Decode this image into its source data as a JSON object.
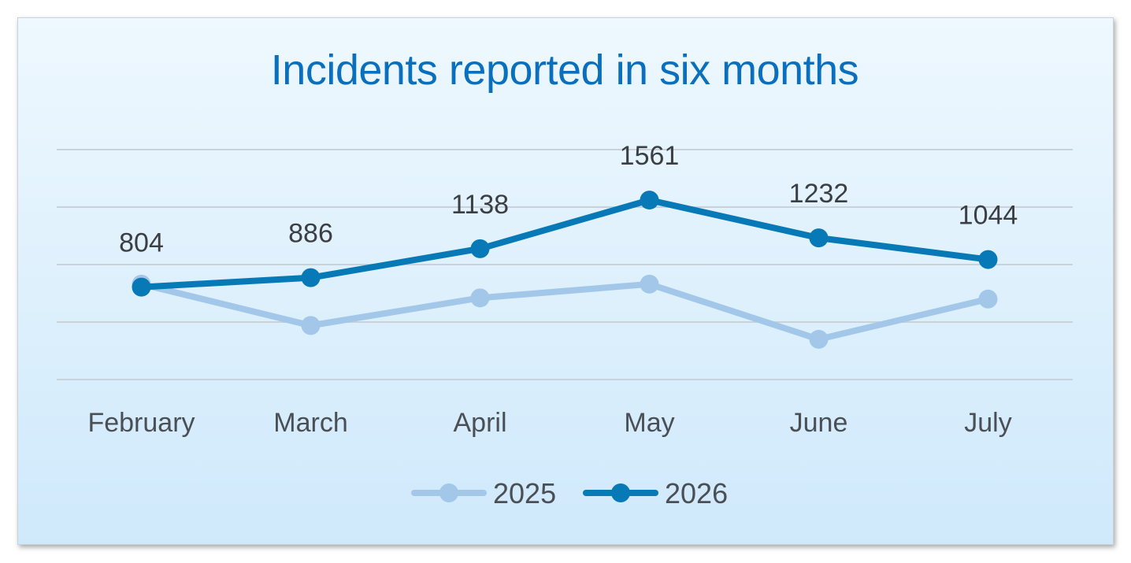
{
  "chart_data": {
    "type": "line",
    "title": "Incidents reported in six months",
    "categories": [
      "February",
      "March",
      "April",
      "May",
      "June",
      "July"
    ],
    "series": [
      {
        "name": "2025",
        "values": [
          830,
          470,
          710,
          830,
          350,
          700
        ],
        "color": "#a3c7e9",
        "labels": false
      },
      {
        "name": "2026",
        "values": [
          804,
          886,
          1138,
          1561,
          1232,
          1044
        ],
        "color": "#0779b6",
        "labels": true
      }
    ],
    "ylim": [
      0,
      2000
    ],
    "grid": true,
    "legend": "bottom"
  }
}
